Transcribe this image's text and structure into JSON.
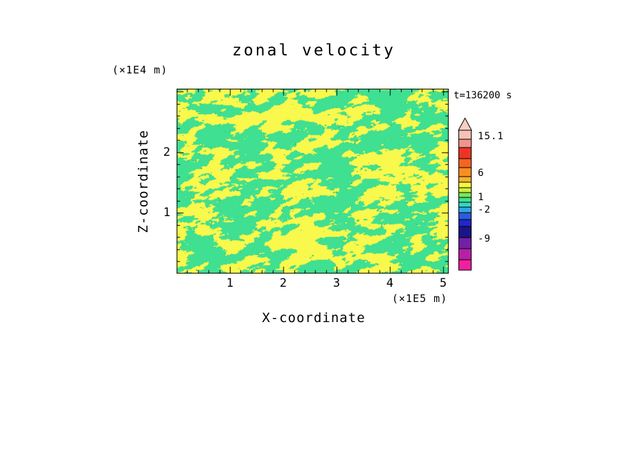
{
  "title": "zonal velocity",
  "annotations": {
    "time_label": "t=136200 s",
    "y_unit_label": "(×1E4 m)",
    "x_unit_label": "(×1E5 m)"
  },
  "axes": {
    "x_label": "X-coordinate",
    "y_label": "Z-coordinate",
    "x_tick_labels": [
      "1",
      "2",
      "3",
      "4",
      "5"
    ],
    "y_tick_labels": [
      "2",
      "1"
    ]
  },
  "colorbar": {
    "tip_color": "#f6cec4",
    "tip_height": 18,
    "labels": [
      {
        "text": "15.1"
      },
      {
        "text": "6"
      },
      {
        "text": "1"
      },
      {
        "text": "-2"
      },
      {
        "text": "-9"
      }
    ],
    "segments": [
      {
        "color": "#f5c2b6",
        "height": 13
      },
      {
        "color": "#f1938a",
        "height": 12
      },
      {
        "color": "#ec3425",
        "height": 16
      },
      {
        "color": "#f4641f",
        "height": 13
      },
      {
        "color": "#f98e20",
        "height": 13
      },
      {
        "color": "#fcb32b",
        "height": 8
      },
      {
        "color": "#fbf43c",
        "height": 8
      },
      {
        "color": "#c9ef3e",
        "height": 7
      },
      {
        "color": "#7ce84f",
        "height": 7
      },
      {
        "color": "#3fe092",
        "height": 7
      },
      {
        "color": "#32d8c2",
        "height": 7
      },
      {
        "color": "#2fa6e0",
        "height": 8
      },
      {
        "color": "#2b5be0",
        "height": 10
      },
      {
        "color": "#2326c9",
        "height": 10
      },
      {
        "color": "#1b1487",
        "height": 16
      },
      {
        "color": "#731fa6",
        "height": 16
      },
      {
        "color": "#b81fa6",
        "height": 16
      },
      {
        "color": "#ef1f9e",
        "height": 15
      }
    ]
  },
  "chart_data": {
    "type": "heatmap",
    "title": "zonal velocity",
    "xlabel": "X-coordinate",
    "ylabel": "Z-coordinate",
    "x_unit": "×1E5 m",
    "y_unit": "×1E4 m",
    "time_annotation": "t=136200 s",
    "xlim": [
      0,
      5.1
    ],
    "ylim": [
      0,
      3.05
    ],
    "x_major_ticks": [
      1,
      2,
      3,
      4,
      5
    ],
    "y_major_ticks": [
      1,
      2,
      3
    ],
    "minor_tick_step": 0.2,
    "major_tick_len": 9,
    "minor_tick_len": 4,
    "colorbar_levels": [
      15.1,
      6,
      1,
      -2,
      -9
    ],
    "field_colors": {
      "low_band": "#3fe092",
      "high_band": "#f9f84c",
      "contour": "#2bc87d"
    },
    "field_description": "fine-grained turbulent two-tone field: green band (approx -2 to 1) interleaved with yellow band (approx 1 to 6)",
    "noise": {
      "seed": 9,
      "scale": 0.05,
      "aspect": 1.7,
      "shear": 0.7,
      "shear2": 0.25,
      "octaves": 4,
      "gain": 0.55,
      "threshold": 0.52,
      "contour_eps": 0.005
    }
  }
}
